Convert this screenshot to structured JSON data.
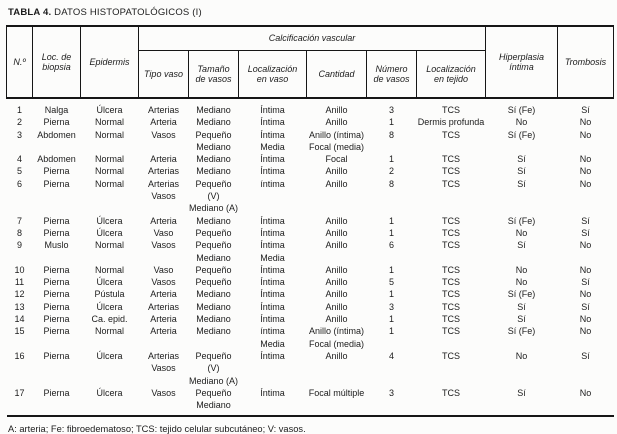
{
  "page": {
    "title_bold": "TABLA 4.",
    "title_rest": " DATOS HISTOPATOLÓGICOS (I)",
    "footnote": "A: arteria; Fe: fibroedematoso; TCS: tejido celular subcutáneo; V: vasos."
  },
  "table": {
    "header": {
      "col_no": "N.º",
      "col_loc": "Loc. de\nbiopsia",
      "col_epidermis": "Epidermis",
      "group_calcificacion": "Calcificación vascular",
      "col_tipo_vaso": "Tipo vaso",
      "col_tamano": "Tamaño\nde vasos",
      "col_loc_vaso": "Localización\nen vaso",
      "col_cantidad": "Cantidad",
      "col_numero": "Número\nde vasos",
      "col_loc_tejido": "Localización\nen tejido",
      "col_hiperplasia": "Hiperplasia\níntima",
      "col_trombosis": "Trombosis"
    },
    "rows": [
      [
        "1",
        "Nalga",
        "Úlcera",
        "Arterias",
        "Mediano",
        "Íntima",
        "Anillo",
        "3",
        "TCS",
        "Sí (Fe)",
        "Sí"
      ],
      [
        "2",
        "Pierna",
        "Normal",
        "Arteria",
        "Mediano",
        "Íntima",
        "Anillo",
        "1",
        "Dermis profunda",
        "No",
        "No"
      ],
      [
        "3",
        "Abdomen",
        "Normal",
        "Vasos",
        "Pequeño\nMediano",
        "Íntima\nMedia",
        "Anillo (íntima)\nFocal (media)",
        "8",
        "TCS",
        "Sí (Fe)",
        "No"
      ],
      [
        "4",
        "Abdomen",
        "Normal",
        "Arteria",
        "Mediano",
        "Íntima",
        "Focal",
        "1",
        "TCS",
        "Sí",
        "No"
      ],
      [
        "5",
        "Pierna",
        "Normal",
        "Arterias",
        "Mediano",
        "Íntima",
        "Anillo",
        "2",
        "TCS",
        "Sí",
        "No"
      ],
      [
        "6",
        "Pierna",
        "Normal",
        "Arterias\nVasos",
        "Pequeño (V)\nMediano (A)",
        "íntima",
        "Anillo",
        "8",
        "TCS",
        "Sí",
        "No"
      ],
      [
        "7",
        "Pierna",
        "Úlcera",
        "Arteria",
        "Mediano",
        "Íntima",
        "Anillo",
        "1",
        "TCS",
        "Sí (Fe)",
        "Sí"
      ],
      [
        "8",
        "Pierna",
        "Úlcera",
        "Vaso",
        "Pequeño",
        "Íntima",
        "Anillo",
        "1",
        "TCS",
        "No",
        "Sí"
      ],
      [
        "9",
        "Muslo",
        "Normal",
        "Vasos",
        "Pequeño\nMediano",
        "Íntima\nMedia",
        "Anillo",
        "6",
        "TCS",
        "Sí",
        "No"
      ],
      [
        "10",
        "Pierna",
        "Normal",
        "Vaso",
        "Pequeño",
        "Íntima",
        "Anillo",
        "1",
        "TCS",
        "No",
        "No"
      ],
      [
        "11",
        "Pierna",
        "Úlcera",
        "Vasos",
        "Pequeño",
        "Íntima",
        "Anillo",
        "5",
        "TCS",
        "No",
        "Sí"
      ],
      [
        "12",
        "Pierna",
        "Pústula",
        "Arteria",
        "Mediano",
        "Íntima",
        "Anillo",
        "1",
        "TCS",
        "Sí (Fe)",
        "No"
      ],
      [
        "13",
        "Pierna",
        "Úlcera",
        "Arterias",
        "Mediano",
        "Íntima",
        "Anillo",
        "3",
        "TCS",
        "Sí",
        "Sí"
      ],
      [
        "14",
        "Pierna",
        "Ca. epid.",
        "Arteria",
        "Mediano",
        "Íntima",
        "Anillo",
        "1",
        "TCS",
        "Sí",
        "No"
      ],
      [
        "15",
        "Pierna",
        "Normal",
        "Arteria",
        "Mediano",
        "íntima\nMedia",
        "Anillo (íntima)\nFocal (media)",
        "1",
        "TCS",
        "Sí (Fe)",
        "No"
      ],
      [
        "16",
        "Pierna",
        "Úlcera",
        "Arterias\nVasos",
        "Pequeño (V)\nMediano (A)",
        "Íntima",
        "Anillo",
        "4",
        "TCS",
        "No",
        "Sí"
      ],
      [
        "17",
        "Pierna",
        "Úlcera",
        "Vasos",
        "Pequeño\nMediano",
        "Íntima",
        "Focal múltiple",
        "3",
        "TCS",
        "Sí",
        "No"
      ]
    ]
  }
}
